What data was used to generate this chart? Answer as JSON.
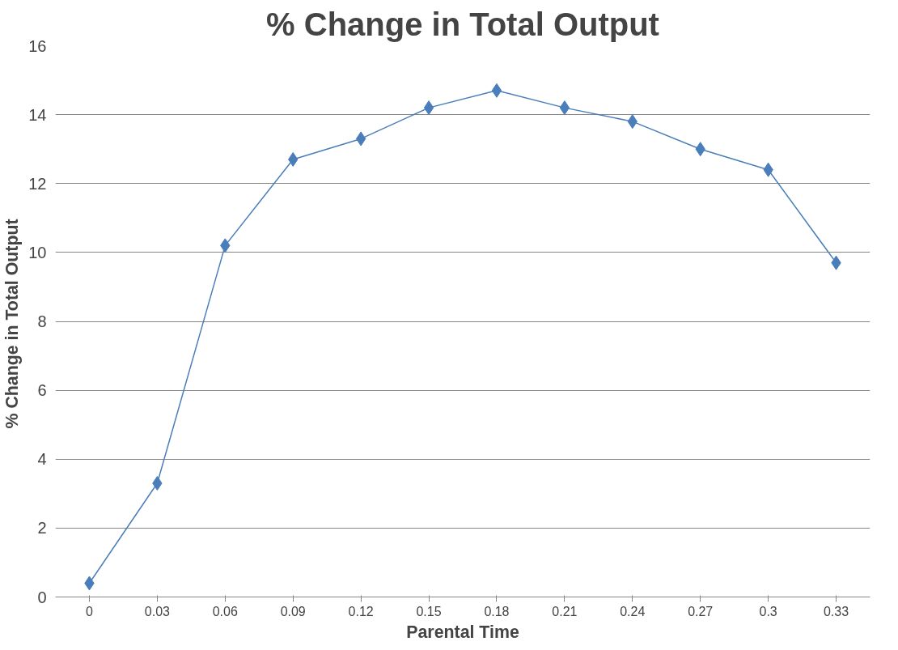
{
  "chart_data": {
    "type": "line",
    "title": "% Change in Total Output",
    "xlabel": "Parental Time",
    "ylabel": "%  Change in Total Output",
    "categories": [
      "0",
      "0.03",
      "0.06",
      "0.09",
      "0.12",
      "0.15",
      "0.18",
      "0.21",
      "0.24",
      "0.27",
      "0.3",
      "0.33"
    ],
    "series": [
      {
        "color": "#4a7ebb",
        "values": [
          0.4,
          3.3,
          10.2,
          12.7,
          13.3,
          14.2,
          14.7,
          14.2,
          13.8,
          13.0,
          12.4,
          9.7
        ]
      }
    ],
    "ylim": [
      0,
      16
    ],
    "yticks": [
      0,
      2,
      4,
      6,
      8,
      10,
      12,
      14,
      16
    ],
    "grid": "y",
    "marker": "diamond",
    "line_style": "solid"
  }
}
